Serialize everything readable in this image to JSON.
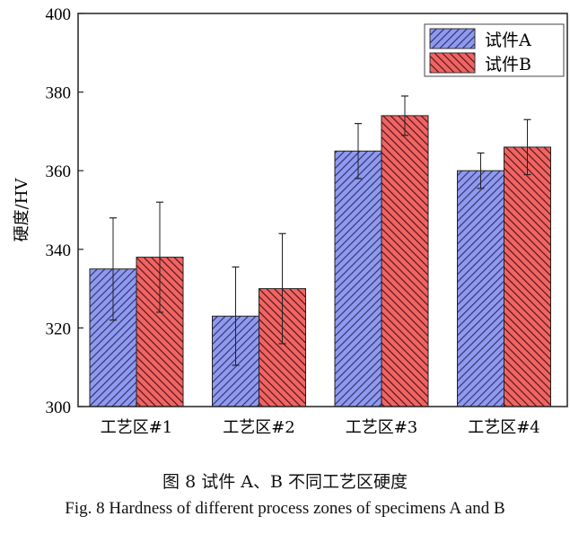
{
  "chart_data": {
    "type": "bar",
    "ylabel": "硬度/HV",
    "xlabel": "",
    "ylim": [
      300,
      400
    ],
    "yticks": [
      300,
      320,
      340,
      360,
      380,
      400
    ],
    "categories": [
      "工艺区#1",
      "工艺区#2",
      "工艺区#3",
      "工艺区#4"
    ],
    "series": [
      {
        "name": "试件A",
        "color": "#7b85e0",
        "hatch": "forward-diagonal",
        "values": [
          335,
          323,
          365,
          360
        ],
        "error": [
          13,
          12.5,
          7,
          4.5
        ]
      },
      {
        "name": "试件B",
        "color": "#ee5a5a",
        "hatch": "backward-diagonal",
        "values": [
          338,
          330,
          374,
          366
        ],
        "error": [
          14,
          14,
          5,
          7
        ]
      }
    ],
    "legend": "top-right",
    "grid": false
  },
  "caption": {
    "zh": "图 8  试件 A、B 不同工艺区硬度",
    "en": "Fig. 8 Hardness of different process zones of specimens A and B"
  }
}
